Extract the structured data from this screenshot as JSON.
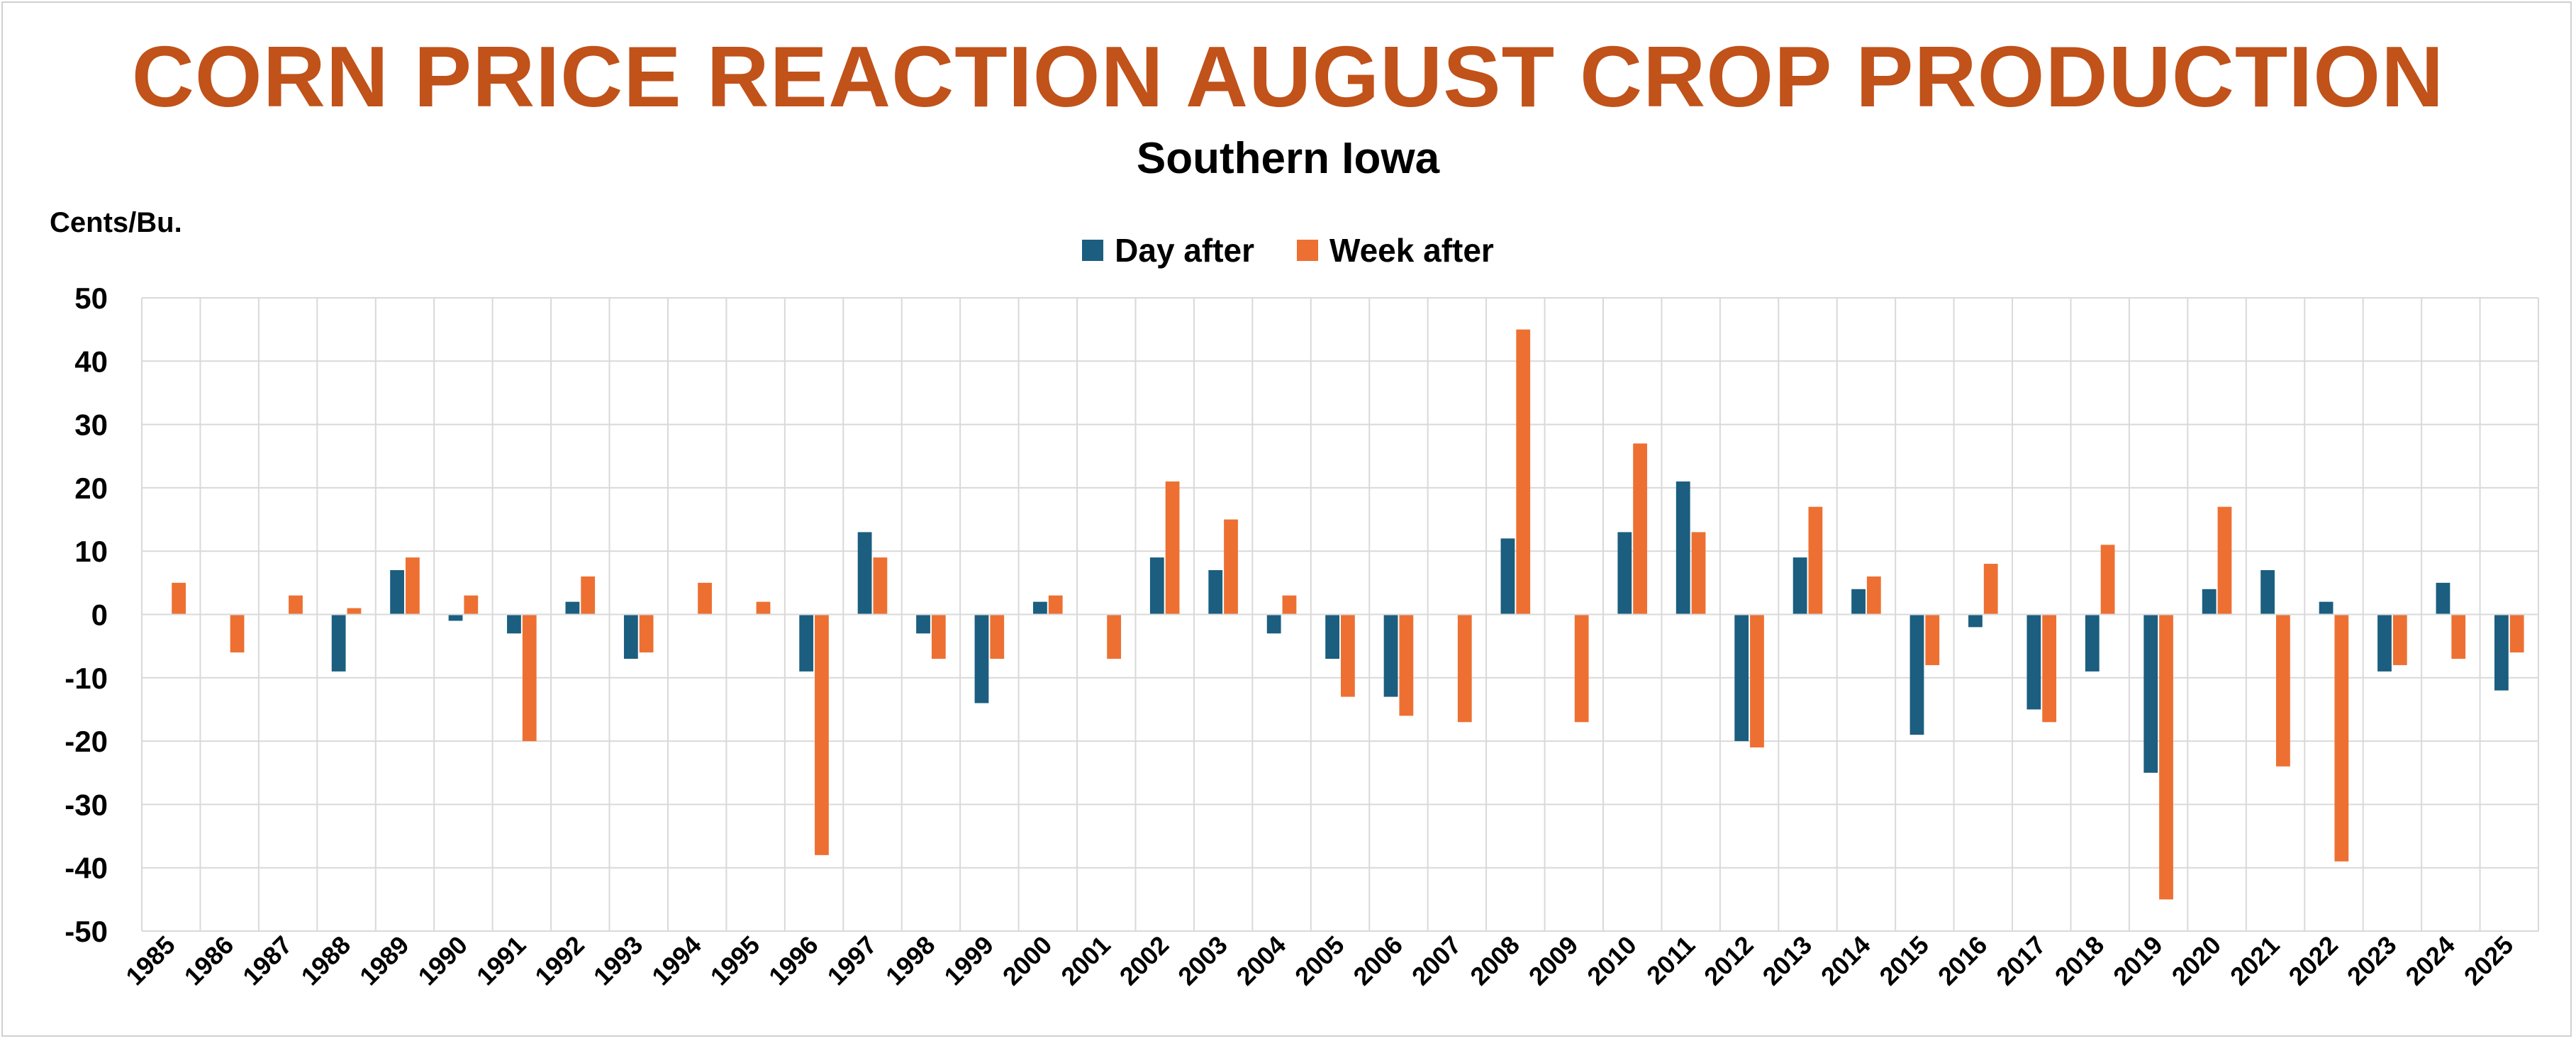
{
  "chart_data": {
    "type": "bar",
    "title": "CORN PRICE REACTION AUGUST CROP PRODUCTION",
    "subtitle": "Southern Iowa",
    "ylabel": "Cents/Bu.",
    "xlabel": "",
    "ylim": [
      -50,
      50
    ],
    "yticks": [
      50,
      40,
      30,
      20,
      10,
      0,
      -10,
      -20,
      -30,
      -40,
      -50
    ],
    "grid": true,
    "legend_position": "top-center",
    "categories": [
      "1985",
      "1986",
      "1987",
      "1988",
      "1989",
      "1990",
      "1991",
      "1992",
      "1993",
      "1994",
      "1995",
      "1996",
      "1997",
      "1998",
      "1999",
      "2000",
      "2001",
      "2002",
      "2003",
      "2004",
      "2005",
      "2006",
      "2007",
      "2008",
      "2009",
      "2010",
      "2011",
      "2012",
      "2013",
      "2014",
      "2015",
      "2016",
      "2017",
      "2018",
      "2019",
      "2020",
      "2021",
      "2022",
      "2023",
      "2024",
      "2025"
    ],
    "series": [
      {
        "name": "Day after",
        "color": "#1B5E7F",
        "values": [
          0,
          0,
          0,
          -9,
          7,
          -1,
          -3,
          2,
          -7,
          0,
          0,
          -9,
          13,
          -3,
          -14,
          2,
          0,
          9,
          7,
          -3,
          -7,
          -13,
          0,
          12,
          0,
          13,
          21,
          -20,
          9,
          4,
          -19,
          -2,
          -15,
          -9,
          -25,
          4,
          7,
          2,
          -9,
          5,
          -12
        ]
      },
      {
        "name": "Week after",
        "color": "#ED7032",
        "values": [
          5,
          -6,
          3,
          1,
          9,
          3,
          -20,
          6,
          -6,
          5,
          2,
          -38,
          9,
          -7,
          -7,
          3,
          -7,
          21,
          15,
          3,
          -13,
          -16,
          -17,
          45,
          -17,
          27,
          13,
          -21,
          17,
          6,
          -8,
          8,
          -17,
          11,
          -45,
          17,
          -24,
          -39,
          -8,
          -7,
          -6
        ]
      }
    ]
  }
}
